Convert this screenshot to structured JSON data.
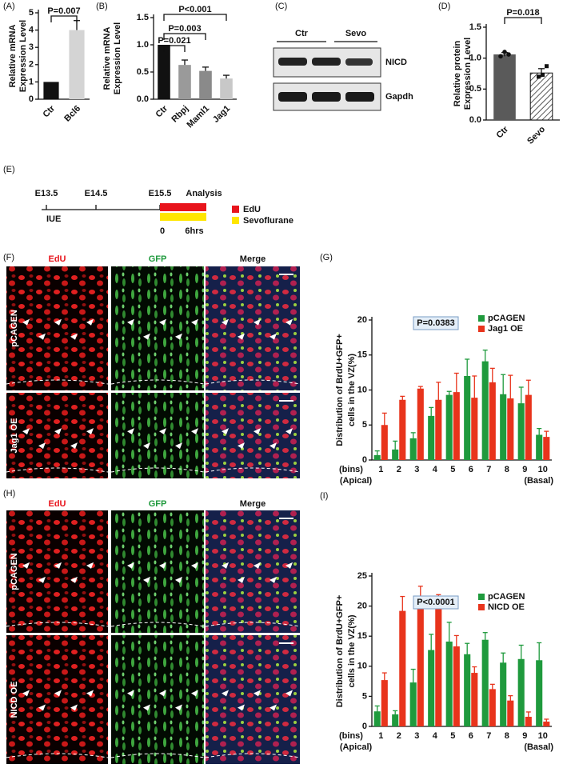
{
  "panel_labels": [
    "(A)",
    "(B)",
    "(C)",
    "(D)",
    "(E)",
    "(F)",
    "(G)",
    "(H)",
    "(I)"
  ],
  "chart_data": [
    {
      "type": "bar",
      "ylabel": [
        "Relative mRNA",
        "Expression  Level"
      ],
      "categories": [
        "Ctr",
        "Bcl6"
      ],
      "values": [
        1,
        4.0
      ],
      "errors": [
        0,
        0.55
      ],
      "colors": [
        "#111111",
        "#d4d4d4"
      ],
      "ylim": [
        0,
        5
      ],
      "yticks": [
        0,
        1,
        2,
        3,
        4,
        5
      ],
      "annotations": [
        "P=0.007"
      ]
    },
    {
      "type": "bar",
      "ylabel": [
        "Relative mRNA",
        "Expression  Level"
      ],
      "categories": [
        "Ctr",
        "Rbpj",
        "Maml1",
        "Jag1"
      ],
      "values": [
        1.0,
        0.63,
        0.52,
        0.38
      ],
      "errors": [
        0,
        0.09,
        0.07,
        0.06
      ],
      "colors": [
        "#111111",
        "#9a9a9a",
        "#8a8a8a",
        "#c8c8c8"
      ],
      "ylim": [
        0,
        1.5
      ],
      "yticks": [
        {
          "value": 0,
          "label": "0.0"
        },
        0.5,
        {
          "value": 1,
          "label": "1.0"
        },
        1.5
      ],
      "annotations": [
        "P=0.021",
        "P=0.003",
        "P<0.001"
      ]
    },
    {
      "type": "bar",
      "ylabel": [
        "Relative protein",
        "Expression  Level"
      ],
      "categories": [
        "Ctr",
        "Sevo"
      ],
      "values": [
        1.06,
        0.76
      ],
      "errors": [
        0.03,
        0.07
      ],
      "points": [
        [
          1.03,
          1.1,
          1.06
        ],
        [
          0.7,
          0.73,
          0.87
        ]
      ],
      "colors": [
        "#5a5a5a",
        "#ffffff"
      ],
      "hatch": [
        false,
        true
      ],
      "ylim": [
        0,
        1.5
      ],
      "yticks": [
        {
          "value": 0,
          "label": "0.0"
        },
        0.5,
        {
          "value": 1,
          "label": "1.0"
        },
        1.5
      ],
      "annotations": [
        "P=0.018"
      ]
    },
    {
      "type": "grouped_bar",
      "ylabel": [
        "Distribution of BrdU+GFP+",
        "cells in the VZ(%)"
      ],
      "categories": [
        "1",
        "2",
        "3",
        "4",
        "5",
        "6",
        "7",
        "8",
        "9",
        "10"
      ],
      "x_notes": [
        "(bins)",
        "(Apical)",
        "(Basal)"
      ],
      "series": [
        {
          "name": "pCAGEN",
          "color": "#1f9a3d",
          "values": [
            0.7,
            1.5,
            3.1,
            6.3,
            9.3,
            12.0,
            14.1,
            9.4,
            8.1,
            3.6
          ],
          "errors": [
            0.6,
            1.2,
            0.8,
            1.2,
            0.5,
            2.4,
            1.6,
            2.8,
            2.3,
            0.9
          ]
        },
        {
          "name": "Jag1 OE",
          "color": "#e8341c",
          "values": [
            5.0,
            8.6,
            10.2,
            8.6,
            9.7,
            8.9,
            11.1,
            8.8,
            9.3,
            3.3
          ],
          "errors": [
            1.7,
            0.5,
            0.3,
            2.5,
            2.7,
            3.1,
            2.0,
            3.3,
            2.1,
            0.8
          ]
        }
      ],
      "ylim": [
        0,
        20
      ],
      "yticks": [
        0,
        5,
        10,
        15,
        20
      ],
      "legend": "upper right",
      "annotations": [
        "P=0.0383"
      ]
    },
    {
      "type": "grouped_bar",
      "ylabel": [
        "Distribution of BrdU+GFP+",
        "cells in the VZ(%)"
      ],
      "categories": [
        "1",
        "2",
        "3",
        "4",
        "5",
        "6",
        "7",
        "8",
        "9",
        "10"
      ],
      "x_notes": [
        "(bins)",
        "(Apical)",
        "(Basal)"
      ],
      "series": [
        {
          "name": "pCAGEN",
          "color": "#1f9a3d",
          "values": [
            2.5,
            2.0,
            7.3,
            12.7,
            14.1,
            12.0,
            14.4,
            10.6,
            11.2,
            11.0
          ],
          "errors": [
            0.9,
            0.6,
            2.2,
            2.6,
            3.2,
            1.8,
            1.2,
            1.6,
            2.3,
            2.9
          ]
        },
        {
          "name": "NICD OE",
          "color": "#e8341c",
          "values": [
            7.7,
            19.2,
            19.9,
            19.6,
            13.3,
            8.9,
            6.2,
            4.3,
            1.6,
            0.8
          ],
          "errors": [
            1.2,
            2.4,
            3.4,
            2.3,
            1.8,
            1.0,
            0.8,
            0.8,
            0.8,
            0.4
          ]
        }
      ],
      "ylim": [
        0,
        25
      ],
      "yticks": [
        0,
        5,
        10,
        15,
        20,
        25
      ],
      "legend": "upper right",
      "annotations": [
        "P<0.0001"
      ]
    }
  ],
  "blot": {
    "groups": [
      "Ctr",
      "Sevo"
    ],
    "bands": [
      "NICD",
      "Gapdh"
    ]
  },
  "timeline": {
    "stages": [
      "E13.5",
      "E14.5",
      "E15.5",
      "Analysis"
    ],
    "start": "IUE",
    "times": [
      "0",
      "6hrs"
    ],
    "legend": [
      "EdU",
      "Sevoflurane"
    ]
  },
  "images_F": {
    "columns": [
      "EdU",
      "GFP",
      "Merge"
    ],
    "rows": [
      "pCAGEN",
      "Jag1 OE"
    ]
  },
  "images_H": {
    "columns": [
      "EdU",
      "GFP",
      "Merge"
    ],
    "rows": [
      "pCAGEN",
      "NICD OE"
    ]
  }
}
